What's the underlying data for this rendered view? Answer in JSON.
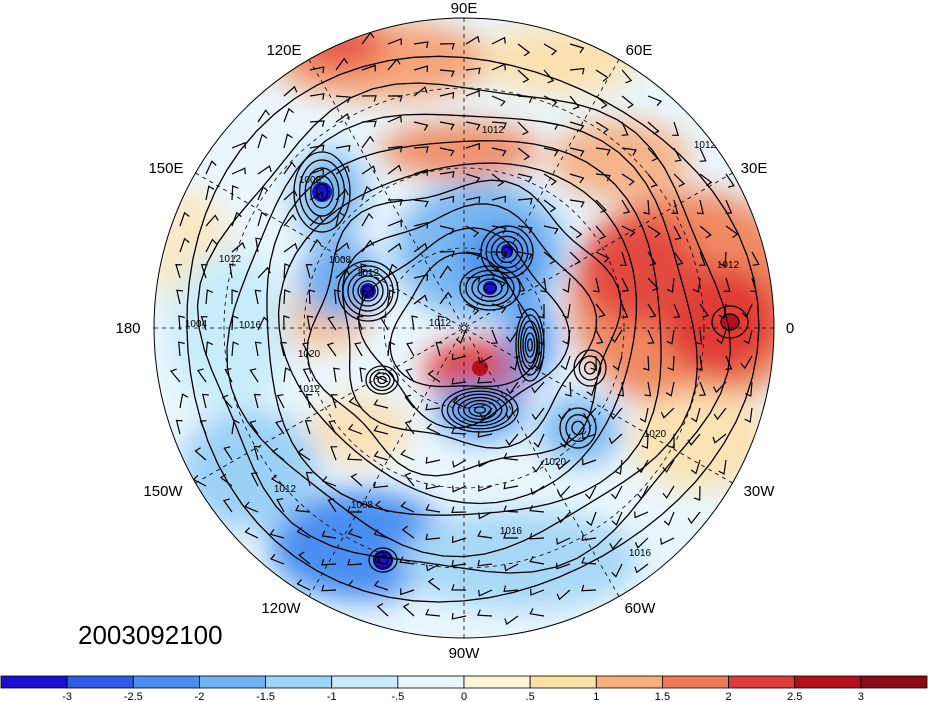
{
  "map": {
    "projection": "north-polar-stereographic",
    "date_label": "2003092100",
    "longitude_labels": [
      "90E",
      "60E",
      "30E",
      "0",
      "30W",
      "60W",
      "90W",
      "120W",
      "150W",
      "180",
      "150E",
      "120E"
    ],
    "contour_labels": [
      "1012",
      "1012",
      "1008",
      "1012",
      "1016",
      "1004",
      "1020",
      "1012",
      "1012",
      "1008",
      "1016",
      "1016",
      "1012",
      "1020",
      "1020",
      "1012",
      "1008",
      "1012"
    ],
    "fields": [
      "shaded anomaly",
      "sea level pressure contours",
      "wind barbs",
      "coastlines"
    ]
  },
  "colorbar": {
    "ticks": [
      "-3",
      "-2.5",
      "-2",
      "-1.5",
      "-1",
      "-.5",
      "0",
      ".5",
      "1",
      "1.5",
      "2",
      "2.5",
      "3"
    ],
    "colors": [
      "#1a0fd2",
      "#2f5ce6",
      "#4a8ef0",
      "#6db3f4",
      "#9cd6f6",
      "#c8ecfb",
      "#e8f6fd",
      "#fdf6d6",
      "#fbe1a4",
      "#f7b07c",
      "#ef7a5a",
      "#e03a36",
      "#b4101c",
      "#8a0a16"
    ]
  }
}
